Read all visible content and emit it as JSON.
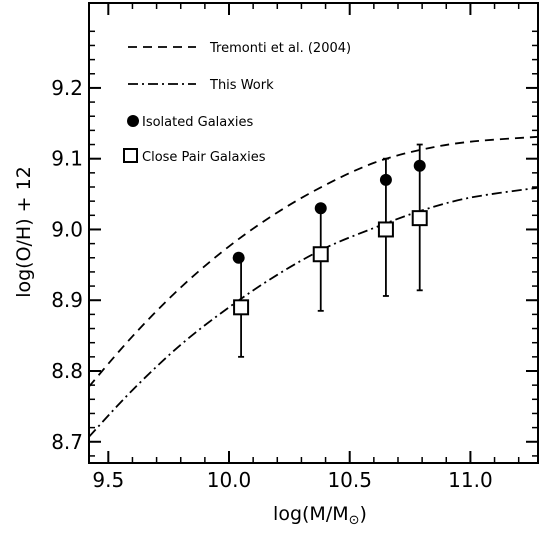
{
  "chart_data": {
    "type": "scatter",
    "title": "",
    "xlabel": "log(M/M",
    "xlabel_sub": "⊙",
    "xlabel_close": ")",
    "ylabel": "log(O/H) + 12",
    "xlim": [
      9.42,
      11.28
    ],
    "ylim": [
      8.67,
      9.32
    ],
    "x_ticks": [
      9.5,
      10.0,
      10.5,
      11.0
    ],
    "x_tick_labels": [
      "9.5",
      "10.0",
      "10.5",
      "11.0"
    ],
    "y_ticks": [
      8.7,
      8.8,
      8.9,
      9.0,
      9.1,
      9.2
    ],
    "y_tick_labels": [
      "8.7",
      "8.8",
      "8.9",
      "9.0",
      "9.1",
      "9.2"
    ],
    "grid": false,
    "legend_position": "top-left",
    "curves": [
      {
        "name": "Tremonti et al. (2004)",
        "style": "dashed",
        "x": [
          9.42,
          9.6,
          9.8,
          10.0,
          10.2,
          10.4,
          10.6,
          10.8,
          11.0,
          11.28
        ],
        "y": [
          8.778,
          8.849,
          8.918,
          8.976,
          9.024,
          9.063,
          9.094,
          9.113,
          9.124,
          9.131
        ]
      },
      {
        "name": "This Work",
        "style": "dashdot",
        "x": [
          9.42,
          9.6,
          9.8,
          10.0,
          10.2,
          10.4,
          10.6,
          10.8,
          11.0,
          11.28
        ],
        "y": [
          8.707,
          8.773,
          8.837,
          8.89,
          8.936,
          8.974,
          9.002,
          9.027,
          9.045,
          9.059
        ]
      }
    ],
    "series": [
      {
        "name": "Isolated Galaxies",
        "marker": "filled-circle",
        "x": [
          10.04,
          10.38,
          10.65,
          10.79
        ],
        "y": [
          8.96,
          9.03,
          9.07,
          9.09
        ]
      },
      {
        "name": "Close Pair Galaxies",
        "marker": "open-square",
        "x": [
          10.05,
          10.38,
          10.65,
          10.79
        ],
        "y": [
          8.89,
          8.965,
          9.0,
          9.016
        ],
        "err_low": [
          8.82,
          8.885,
          8.906,
          8.914
        ],
        "err_high": [
          8.96,
          9.032,
          9.1,
          9.12
        ]
      }
    ]
  }
}
